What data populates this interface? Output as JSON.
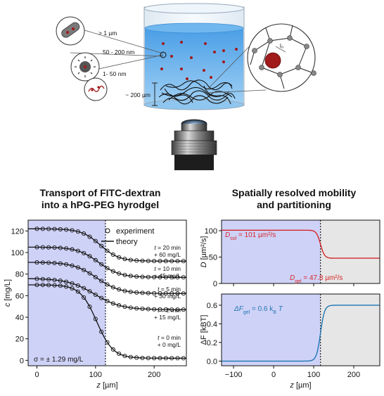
{
  "schematic": {
    "size_labels": [
      "> 1 µm",
      "50 - 200 nm",
      "1- 50 nm"
    ],
    "gel_thickness_label": "~ 200 µm",
    "mesh_label": "l₀"
  },
  "panels": {
    "left_title_line1": "Transport of FITC-dextran",
    "left_title_line2": "into a hPG-PEG hyrodgel",
    "right_title_line1": "Spatially resolved mobility",
    "right_title_line2": "and partitioning"
  },
  "chart_data": [
    {
      "type": "line",
      "xlabel": "z [µm]",
      "ylabel": "c [mg/L]",
      "xlim": [
        -15,
        255
      ],
      "ylim": [
        -5,
        130
      ],
      "xticks": [
        0,
        100,
        200
      ],
      "yticks": [
        0,
        20,
        40,
        60,
        80,
        100,
        120
      ],
      "interface_z": 117,
      "shaded_region": [
        -15,
        117
      ],
      "legend": [
        {
          "marker": "circle",
          "label": "experiment"
        },
        {
          "marker": "line",
          "label": "theory"
        }
      ],
      "annotation": "σ = ± 1.29 mg/L",
      "series": [
        {
          "label_time": "t = 20 min",
          "label_offset": "+ 60 mg/L",
          "plateau": 122,
          "bulk": 92,
          "center": 108,
          "width": 16
        },
        {
          "label_time": "t = 10 min",
          "label_offset": "+ 45 mg/L",
          "plateau": 105,
          "bulk": 77,
          "center": 105,
          "width": 18
        },
        {
          "label_time": "t = 5 min",
          "label_offset": "+ 30 mg/L",
          "plateau": 91,
          "bulk": 62,
          "center": 102,
          "width": 20
        },
        {
          "label_time": "t = 2 min",
          "label_offset": "+ 15 mg/L",
          "plateau": 76,
          "bulk": 47,
          "center": 98,
          "width": 23
        },
        {
          "label_time": "t = 0 min",
          "label_offset": "+ 0 mg/L",
          "plateau": 70,
          "bulk": 2,
          "center": 102,
          "width": 14
        }
      ]
    },
    {
      "type": "line",
      "xlabel": "",
      "ylabel": "D [µm²/s]",
      "xlim": [
        -130,
        265
      ],
      "ylim": [
        0,
        120
      ],
      "yticks": [
        0,
        50,
        100
      ],
      "interface_z": 117,
      "series": [
        {
          "name": "D",
          "color": "#d62728",
          "left": 101,
          "right": 47.8,
          "center": 117,
          "width": 10
        }
      ],
      "annotations": [
        {
          "sym": "D",
          "sub": "sol",
          "value": " = 101 µm²/s"
        },
        {
          "sym": "D",
          "sub": "gel",
          "value": " = 47.8 µm²/s"
        }
      ]
    },
    {
      "type": "line",
      "xlabel": "z [µm]",
      "ylabel": "ΔF [kBT]",
      "xlim": [
        -130,
        265
      ],
      "ylim": [
        -0.05,
        0.72
      ],
      "xticks": [
        -100,
        0,
        100,
        200
      ],
      "yticks": [
        0.0,
        0.2,
        0.4,
        0.6
      ],
      "interface_z": 117,
      "series": [
        {
          "name": "ΔF",
          "color": "#1f77b4",
          "left": 0.0,
          "right": 0.6,
          "center": 117,
          "width": 10
        }
      ],
      "annotations": [
        {
          "text": "ΔF",
          "sub": "gel",
          "value": " = 0.6 k",
          "sub2": "B",
          "tail": " T"
        }
      ]
    }
  ]
}
